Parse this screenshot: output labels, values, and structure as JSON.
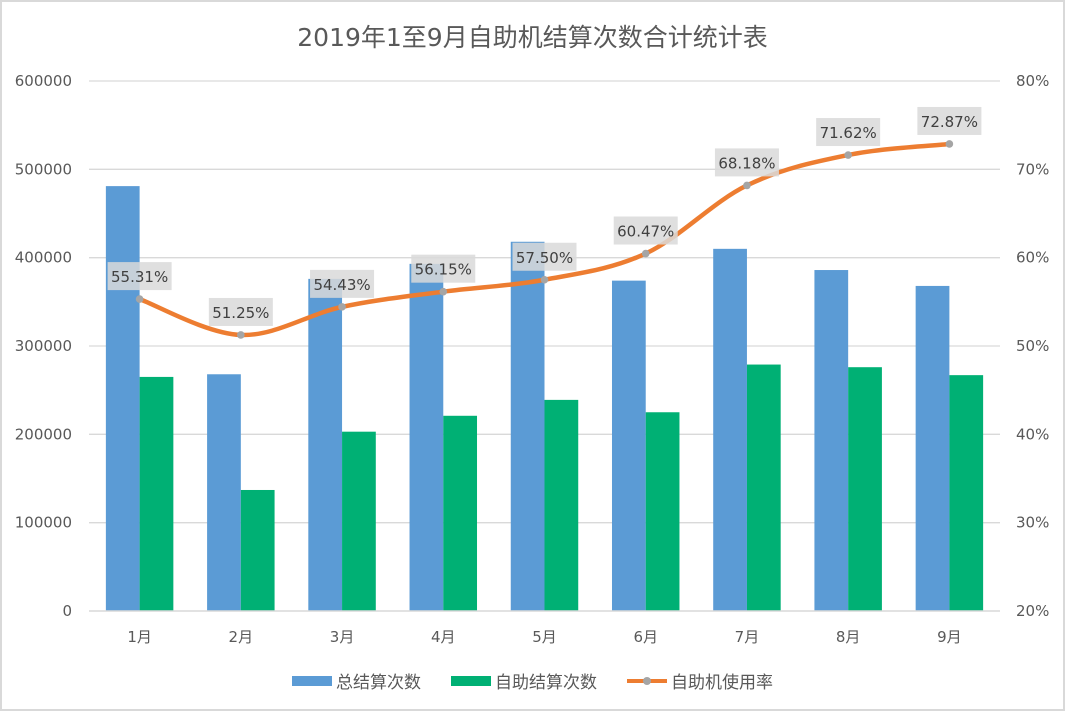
{
  "chart_data": {
    "type": "bar",
    "title": "2019年1至9月自助机结算次数合计统计表",
    "categories": [
      "1月",
      "2月",
      "3月",
      "4月",
      "5月",
      "6月",
      "7月",
      "8月",
      "9月"
    ],
    "series": [
      {
        "name": "总结算次数",
        "type": "bar",
        "axis": "left",
        "color": "#5b9bd5",
        "values": [
          481000,
          268000,
          376000,
          393000,
          418000,
          374000,
          410000,
          386000,
          368000
        ]
      },
      {
        "name": "自助结算次数",
        "type": "bar",
        "axis": "left",
        "color": "#00b074",
        "values": [
          265000,
          137000,
          203000,
          221000,
          239000,
          225000,
          279000,
          276000,
          267000
        ]
      },
      {
        "name": "自助机使用率",
        "type": "line",
        "axis": "right",
        "color": "#ed7d31",
        "marker_color": "#a5a5a5",
        "values": [
          55.31,
          51.25,
          54.43,
          56.15,
          57.5,
          60.47,
          68.18,
          71.62,
          72.87
        ],
        "labels": [
          "55.31%",
          "51.25%",
          "54.43%",
          "56.15%",
          "57.50%",
          "60.47%",
          "68.18%",
          "71.62%",
          "72.87%"
        ]
      }
    ],
    "y_left": {
      "min": 0,
      "max": 600000,
      "ticks": [
        "0",
        "100000",
        "200000",
        "300000",
        "400000",
        "500000",
        "600000"
      ]
    },
    "y_right": {
      "min": 20,
      "max": 80,
      "ticks": [
        "20%",
        "30%",
        "40%",
        "50%",
        "60%",
        "70%",
        "80%"
      ]
    },
    "grid": true,
    "legend": "bottom"
  }
}
